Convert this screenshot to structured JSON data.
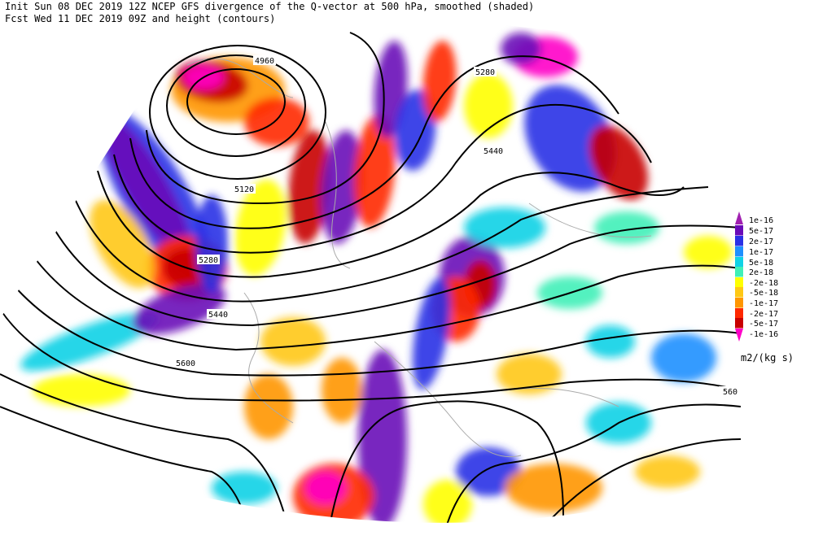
{
  "header": {
    "line1": "Init  Sun 08 DEC 2019 12Z  NCEP GFS divergence of the Q-vector at 500 hPa, smoothed (shaded)",
    "line2": "Fcst Wed 11 DEC 2019 09Z  and height (contours)"
  },
  "contour_labels": [
    "4960",
    "5280",
    "5440",
    "5120",
    "5280",
    "5440",
    "5600",
    "560"
  ],
  "legend": {
    "entries": [
      {
        "label": "1e-16",
        "color": "#a020b0"
      },
      {
        "label": "5e-17",
        "color": "#6a0bb8"
      },
      {
        "label": "2e-17",
        "color": "#2a30e6"
      },
      {
        "label": "1e-17",
        "color": "#1e90ff"
      },
      {
        "label": "5e-18",
        "color": "#10d2e6"
      },
      {
        "label": "2e-18",
        "color": "#40f0b8"
      },
      {
        "label": "-2e-18",
        "color": "#ffff00"
      },
      {
        "label": "-5e-18",
        "color": "#ffc814"
      },
      {
        "label": "-1e-17",
        "color": "#ff9600"
      },
      {
        "label": "-2e-17",
        "color": "#ff2800"
      },
      {
        "label": "-5e-17",
        "color": "#c80000"
      },
      {
        "label": "-1e-16",
        "color": "#ff00c8"
      }
    ],
    "unit": "m2/(kg s)"
  }
}
